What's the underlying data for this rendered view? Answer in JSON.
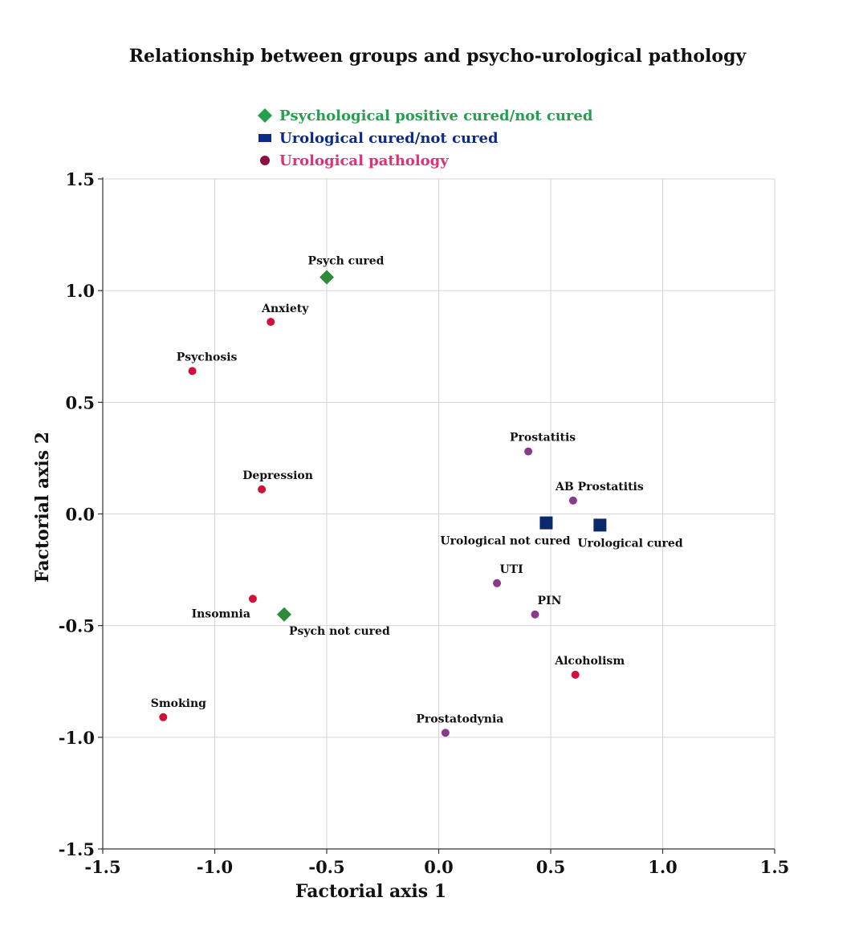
{
  "chart_data": {
    "type": "scatter",
    "title": "Relationship between groups and psycho-urological pathology",
    "xlabel": "Factorial axis 1",
    "ylabel": "Factorial axis 2",
    "xlim": [
      -1.5,
      1.5
    ],
    "ylim": [
      -1.5,
      1.5
    ],
    "x_ticks": [
      "-1.5",
      "-1.0",
      "-0.5",
      "0.0",
      "0.5",
      "1.0",
      "1.5"
    ],
    "y_ticks": [
      "1.5",
      "1.0",
      "0.5",
      "0.0",
      "-0.5",
      "-1.0",
      "-1.5"
    ],
    "x_tick_values": [
      -1.5,
      -1.0,
      -0.5,
      0.0,
      0.5,
      1.0,
      1.5
    ],
    "y_tick_values": [
      1.5,
      1.0,
      0.5,
      0.0,
      -0.5,
      -1.0,
      -1.5
    ],
    "grid": true,
    "legend_position": "top-left",
    "series": [
      {
        "name": "Psychological positive cured/not cured",
        "marker": "diamond",
        "color": "#2e8b3a",
        "legend_color": "#22a050",
        "points": [
          {
            "label": "Psych cured",
            "x": -0.5,
            "y": 1.06,
            "label_pos": "above"
          },
          {
            "label": "Psych not cured",
            "x": -0.69,
            "y": -0.45,
            "label_pos": "below-right"
          }
        ]
      },
      {
        "name": "Urological cured/not cured",
        "marker": "square",
        "color": "#0b2a6b",
        "legend_color": "#0b2a8a",
        "points": [
          {
            "label": "Urological not cured",
            "x": 0.48,
            "y": -0.04,
            "label_pos": "below"
          },
          {
            "label": "Urological cured",
            "x": 0.72,
            "y": -0.05,
            "label_pos": "below-right"
          }
        ]
      },
      {
        "name": "Urological pathology",
        "marker": "circle",
        "color": "#d0103a",
        "legend_color": "#e0307a",
        "legend_marker_color": "#8a1040",
        "points": [
          {
            "label": "Anxiety",
            "x": -0.75,
            "y": 0.86,
            "label_pos": "above",
            "color": "#d0103a"
          },
          {
            "label": "Psychosis",
            "x": -1.1,
            "y": 0.64,
            "label_pos": "above",
            "color": "#d0103a"
          },
          {
            "label": "Depression",
            "x": -0.79,
            "y": 0.11,
            "label_pos": "above",
            "color": "#d0103a"
          },
          {
            "label": "Insomnia",
            "x": -0.83,
            "y": -0.38,
            "label_pos": "below-left",
            "color": "#d0103a"
          },
          {
            "label": "Smoking",
            "x": -1.23,
            "y": -0.91,
            "label_pos": "above",
            "color": "#d0103a"
          },
          {
            "label": "Alcoholism",
            "x": 0.61,
            "y": -0.72,
            "label_pos": "above",
            "color": "#d0103a"
          },
          {
            "label": "Prostatitis",
            "x": 0.4,
            "y": 0.28,
            "label_pos": "above",
            "color": "#8a3a8a"
          },
          {
            "label": "AB Prostatitis",
            "x": 0.6,
            "y": 0.06,
            "label_pos": "above",
            "color": "#8a3a8a"
          },
          {
            "label": "UTI",
            "x": 0.26,
            "y": -0.31,
            "label_pos": "above",
            "color": "#8a3a8a"
          },
          {
            "label": "PIN",
            "x": 0.43,
            "y": -0.45,
            "label_pos": "above",
            "color": "#8a3a8a"
          },
          {
            "label": "Prostatodynia",
            "x": 0.03,
            "y": -0.98,
            "label_pos": "above",
            "color": "#8a3a8a"
          }
        ]
      }
    ]
  }
}
